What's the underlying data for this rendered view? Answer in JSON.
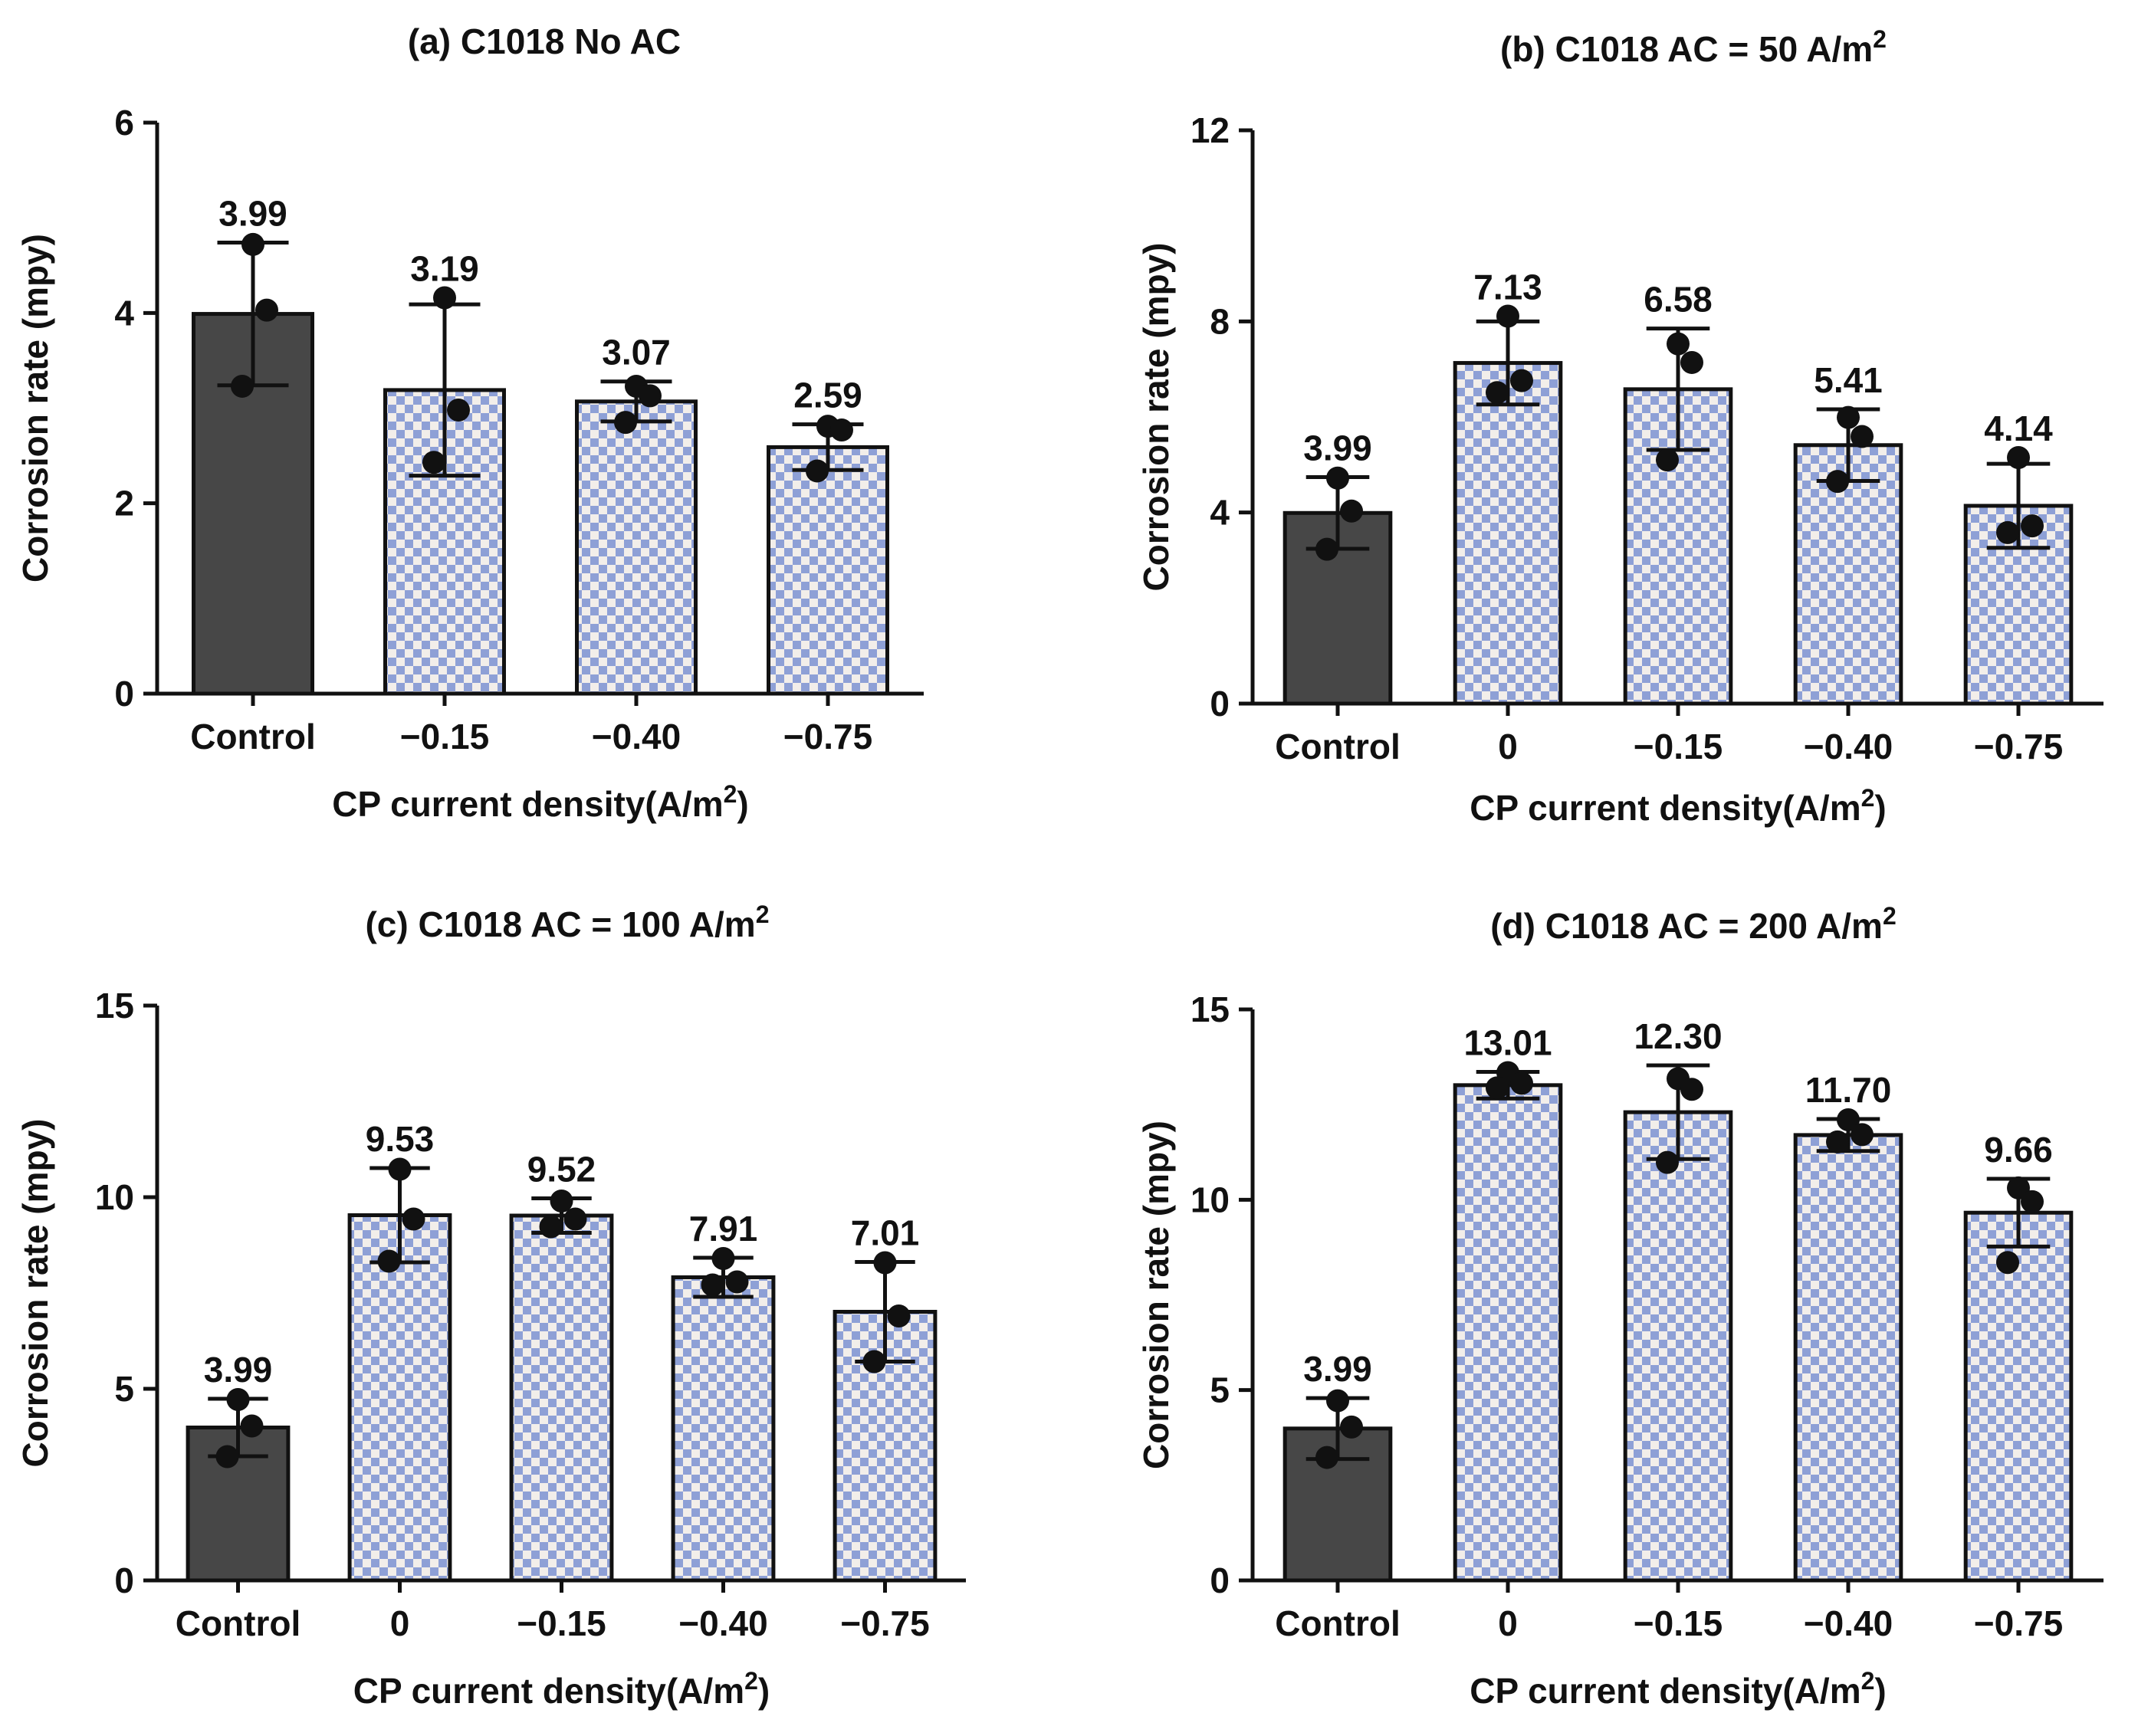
{
  "colors": {
    "control_bar": "#474747",
    "check_a": "#8ea0d6",
    "check_b": "#f2eeea",
    "axis": "#111111",
    "point": "#111111"
  },
  "chart_data": [
    {
      "type": "bar",
      "title": "(a) C1018 No AC",
      "title_sup": "",
      "xlabel": "CP current density(A/m",
      "xlabel_sup": "2",
      "xlabel_tail": ")",
      "ylabel": "Corrosion rate (mpy)",
      "ylim": [
        0,
        6
      ],
      "yticks": [
        0,
        2,
        4,
        6
      ],
      "categories": [
        "Control",
        "−0.15",
        "−0.40",
        "−0.75"
      ],
      "values": [
        3.99,
        3.19,
        3.07,
        2.59
      ],
      "value_labels": [
        "3.99",
        "3.19",
        "3.07",
        "2.59"
      ],
      "errors": [
        0.75,
        0.9,
        0.21,
        0.24
      ],
      "points": [
        [
          4.72,
          4.03,
          3.23
        ],
        [
          4.16,
          2.98,
          2.43
        ],
        [
          3.23,
          3.13,
          2.85
        ],
        [
          2.81,
          2.77,
          2.34
        ]
      ]
    },
    {
      "type": "bar",
      "title": "(b) C1018  AC = 50 A/m",
      "title_sup": "2",
      "xlabel": "CP current density(A/m",
      "xlabel_sup": "2",
      "xlabel_tail": ")",
      "ylabel": "Corrosion rate (mpy)",
      "ylim": [
        0,
        12
      ],
      "yticks": [
        0,
        4,
        8,
        12
      ],
      "categories": [
        "Control",
        "0",
        "−0.15",
        "−0.40",
        "−0.75"
      ],
      "values": [
        3.99,
        7.13,
        6.58,
        5.41,
        4.14
      ],
      "value_labels": [
        "3.99",
        "7.13",
        "6.58",
        "5.41",
        "4.14"
      ],
      "errors": [
        0.75,
        0.87,
        1.27,
        0.75,
        0.88
      ],
      "points": [
        [
          4.72,
          4.03,
          3.23
        ],
        [
          8.11,
          6.76,
          6.51
        ],
        [
          7.53,
          7.14,
          5.1
        ],
        [
          5.99,
          5.59,
          4.65
        ],
        [
          5.15,
          3.72,
          3.58
        ]
      ]
    },
    {
      "type": "bar",
      "title": "(c) C1018  AC = 100 A/m",
      "title_sup": "2",
      "xlabel": "CP current density(A/m",
      "xlabel_sup": "2",
      "xlabel_tail": ")",
      "ylabel": "Corrosion rate (mpy)",
      "ylim": [
        0,
        15
      ],
      "yticks": [
        0,
        5,
        10,
        15
      ],
      "categories": [
        "Control",
        "0",
        "−0.15",
        "−0.40",
        "−0.75"
      ],
      "values": [
        3.99,
        9.53,
        9.52,
        7.91,
        7.01
      ],
      "value_labels": [
        "3.99",
        "9.53",
        "9.52",
        "7.91",
        "7.01"
      ],
      "errors": [
        0.75,
        1.23,
        0.45,
        0.51,
        1.3
      ],
      "points": [
        [
          4.72,
          4.03,
          3.23
        ],
        [
          10.73,
          9.43,
          8.33
        ],
        [
          9.9,
          9.43,
          9.23
        ],
        [
          8.4,
          7.79,
          7.71
        ],
        [
          8.29,
          6.9,
          5.71
        ]
      ]
    },
    {
      "type": "bar",
      "title": "(d) C1018  AC = 200 A/m",
      "title_sup": "2",
      "xlabel": "CP current density(A/m",
      "xlabel_sup": "2",
      "xlabel_tail": ")",
      "ylabel": "Corrosion rate (mpy)",
      "ylim": [
        0,
        15
      ],
      "yticks": [
        0,
        5,
        10,
        15
      ],
      "categories": [
        "Control",
        "0",
        "−0.15",
        "−0.40",
        "−0.75"
      ],
      "values": [
        3.99,
        13.01,
        12.3,
        11.7,
        9.66
      ],
      "value_labels": [
        "3.99",
        "13.01",
        "12.30",
        "11.70",
        "9.66"
      ],
      "errors": [
        0.8,
        0.35,
        1.23,
        0.42,
        0.89
      ],
      "points": [
        [
          4.72,
          4.03,
          3.23
        ],
        [
          13.34,
          13.06,
          12.94
        ],
        [
          13.18,
          12.9,
          10.98
        ],
        [
          12.1,
          11.71,
          11.52
        ],
        [
          10.31,
          9.95,
          8.35
        ]
      ]
    }
  ]
}
